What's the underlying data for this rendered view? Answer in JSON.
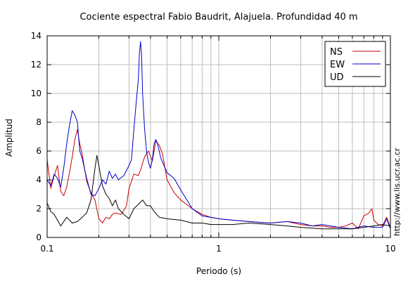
{
  "chart_data": {
    "type": "line",
    "title": "Cociente espectral Fabio Baudrit, Alajuela. Profundidad 40 m",
    "xlabel": "Periodo (s)",
    "ylabel": "Amplitud",
    "xscale": "log",
    "xlim": [
      0.1,
      10
    ],
    "ylim": [
      0,
      14
    ],
    "grid": true,
    "legend_position": "top-right",
    "xticks": [
      {
        "value": 0.1,
        "label": "0.1"
      },
      {
        "value": 1,
        "label": "1"
      },
      {
        "value": 10,
        "label": "10"
      }
    ],
    "yticks": [
      0,
      2,
      4,
      6,
      8,
      10,
      12,
      14
    ],
    "side_text": "http://www.lis.ucr.ac.cr",
    "series": [
      {
        "name": "NS",
        "color": "#cc0000",
        "x": [
          0.1,
          0.105,
          0.11,
          0.115,
          0.12,
          0.125,
          0.13,
          0.135,
          0.14,
          0.145,
          0.15,
          0.155,
          0.16,
          0.165,
          0.17,
          0.18,
          0.19,
          0.2,
          0.21,
          0.22,
          0.23,
          0.24,
          0.25,
          0.27,
          0.29,
          0.3,
          0.32,
          0.34,
          0.35,
          0.37,
          0.39,
          0.41,
          0.43,
          0.45,
          0.47,
          0.5,
          0.55,
          0.6,
          0.7,
          0.8,
          0.9,
          1.0,
          1.2,
          1.5,
          2.0,
          2.5,
          3.0,
          3.5,
          4.0,
          4.5,
          5.0,
          5.5,
          6.0,
          6.5,
          7.0,
          7.5,
          7.8,
          8.0,
          8.5,
          9.0,
          9.5,
          10.0
        ],
        "y": [
          5.4,
          3.4,
          4.3,
          5.0,
          3.2,
          2.9,
          3.5,
          4.5,
          5.6,
          6.8,
          7.5,
          6.5,
          5.8,
          4.8,
          3.9,
          3.1,
          2.6,
          1.3,
          1.0,
          1.4,
          1.3,
          1.6,
          1.7,
          1.6,
          2.2,
          3.4,
          4.4,
          4.3,
          4.7,
          5.6,
          6.0,
          5.3,
          6.7,
          6.4,
          5.8,
          4.0,
          3.1,
          2.6,
          2.0,
          1.6,
          1.4,
          1.3,
          1.2,
          1.1,
          1.0,
          1.1,
          0.9,
          0.8,
          0.8,
          0.7,
          0.7,
          0.8,
          1.0,
          0.6,
          1.5,
          1.7,
          2.0,
          1.2,
          0.9,
          0.8,
          1.4,
          0.7
        ]
      },
      {
        "name": "EW",
        "color": "#0000cc",
        "x": [
          0.1,
          0.105,
          0.11,
          0.115,
          0.12,
          0.125,
          0.13,
          0.135,
          0.14,
          0.145,
          0.15,
          0.155,
          0.16,
          0.17,
          0.18,
          0.19,
          0.2,
          0.21,
          0.22,
          0.23,
          0.24,
          0.25,
          0.26,
          0.28,
          0.3,
          0.31,
          0.32,
          0.33,
          0.34,
          0.345,
          0.35,
          0.355,
          0.36,
          0.37,
          0.38,
          0.39,
          0.4,
          0.41,
          0.42,
          0.43,
          0.44,
          0.46,
          0.5,
          0.55,
          0.6,
          0.7,
          0.8,
          1.0,
          1.2,
          1.5,
          2.0,
          2.5,
          3.0,
          3.5,
          4.0,
          5.0,
          6.0,
          7.0,
          8.0,
          9.0,
          9.5,
          10.0
        ],
        "y": [
          4.0,
          3.6,
          4.4,
          4.1,
          3.5,
          4.8,
          6.5,
          7.8,
          8.8,
          8.5,
          8.0,
          6.0,
          5.5,
          4.1,
          3.0,
          2.9,
          3.4,
          4.0,
          3.7,
          4.6,
          4.1,
          4.4,
          4.0,
          4.3,
          5.0,
          5.4,
          7.5,
          9.3,
          11.0,
          12.8,
          13.6,
          12.6,
          10.0,
          7.5,
          5.9,
          5.2,
          4.8,
          5.4,
          6.5,
          6.8,
          6.5,
          5.5,
          4.5,
          4.1,
          3.3,
          2.0,
          1.5,
          1.3,
          1.2,
          1.1,
          1.0,
          1.1,
          1.0,
          0.8,
          0.9,
          0.7,
          0.6,
          0.8,
          0.7,
          0.7,
          1.3,
          0.6
        ]
      },
      {
        "name": "UD",
        "color": "#000000",
        "x": [
          0.1,
          0.105,
          0.11,
          0.12,
          0.13,
          0.14,
          0.15,
          0.16,
          0.17,
          0.18,
          0.19,
          0.195,
          0.2,
          0.21,
          0.22,
          0.23,
          0.24,
          0.25,
          0.26,
          0.28,
          0.3,
          0.32,
          0.34,
          0.36,
          0.38,
          0.4,
          0.42,
          0.45,
          0.5,
          0.6,
          0.7,
          0.8,
          0.9,
          1.0,
          1.2,
          1.5,
          2.0,
          2.5,
          3.0,
          4.0,
          5.0,
          6.0,
          7.0,
          8.0,
          9.0,
          10.0
        ],
        "y": [
          2.4,
          1.8,
          1.6,
          0.8,
          1.4,
          1.0,
          1.1,
          1.4,
          1.7,
          2.6,
          4.8,
          5.7,
          5.0,
          3.6,
          3.0,
          2.7,
          2.2,
          2.6,
          2.0,
          1.6,
          1.3,
          2.0,
          2.3,
          2.6,
          2.2,
          2.2,
          1.8,
          1.4,
          1.3,
          1.2,
          1.0,
          1.0,
          0.9,
          0.9,
          0.9,
          1.0,
          0.9,
          0.8,
          0.7,
          0.6,
          0.6,
          0.6,
          0.7,
          0.8,
          0.9,
          0.8
        ]
      }
    ]
  }
}
